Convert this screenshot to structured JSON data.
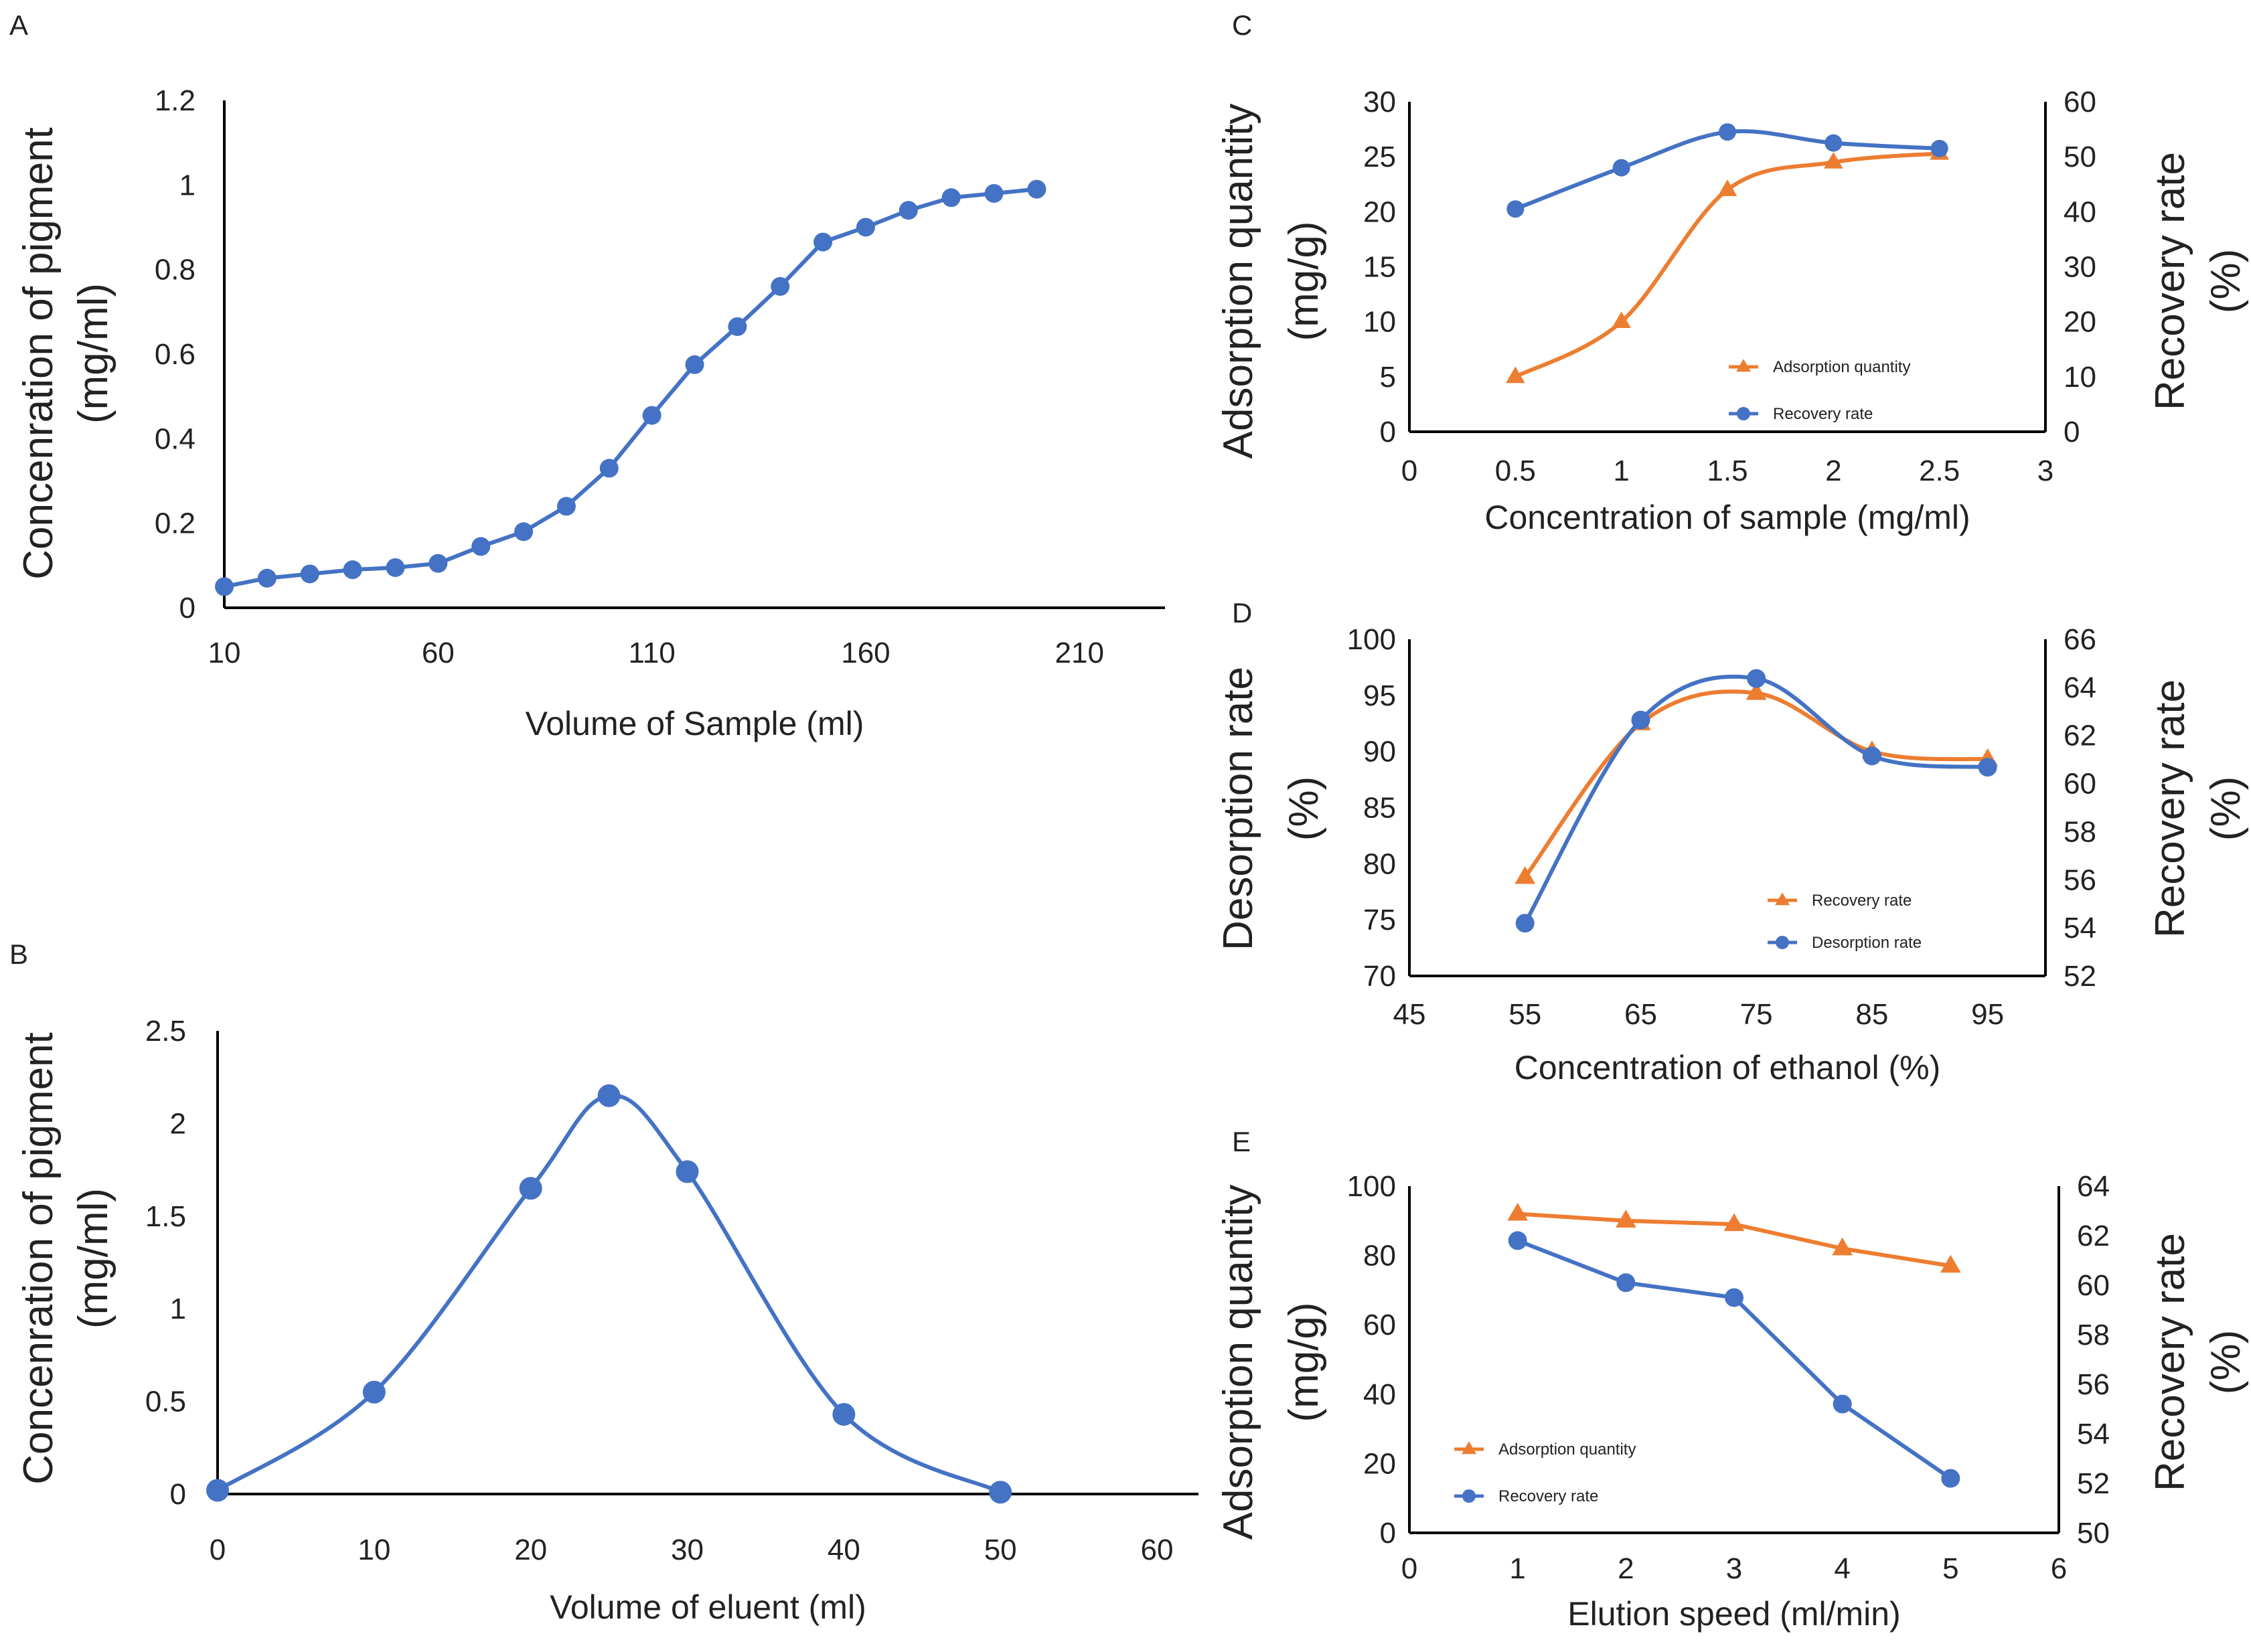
{
  "colors": {
    "blue": "#4472C4",
    "orange": "#ED7D31",
    "axis": "#000000",
    "text": "#222222"
  },
  "chart_data": [
    {
      "panel": "A",
      "type": "line",
      "xlabel": "Volume of Sample (ml)",
      "ylabel": [
        "Concenration of pigment",
        "(mg/ml)"
      ],
      "xlim": [
        10,
        230
      ],
      "ylim": [
        0,
        1.2
      ],
      "xticks": [
        10,
        60,
        110,
        160,
        210
      ],
      "yticks": [
        0,
        0.2,
        0.4,
        0.6,
        0.8,
        1,
        1.2
      ],
      "series": [
        {
          "name": "Concentration of pigment",
          "color": "#4472C4",
          "marker": "circle",
          "x": [
            10,
            20,
            30,
            40,
            50,
            60,
            70,
            80,
            90,
            100,
            110,
            120,
            130,
            140,
            150,
            160,
            170,
            180,
            190,
            200
          ],
          "y": [
            0.05,
            0.07,
            0.08,
            0.09,
            0.095,
            0.105,
            0.145,
            0.18,
            0.24,
            0.33,
            0.455,
            0.575,
            0.665,
            0.76,
            0.865,
            0.9,
            0.94,
            0.97,
            0.98,
            0.99
          ]
        }
      ]
    },
    {
      "panel": "B",
      "type": "line",
      "xlabel": "Volume of eluent (ml)",
      "ylabel": [
        "Concenration of pigment",
        "(mg/ml)"
      ],
      "xlim": [
        0,
        60
      ],
      "ylim": [
        0,
        2.5
      ],
      "xticks": [
        0,
        10,
        20,
        30,
        40,
        50,
        60
      ],
      "yticks": [
        0,
        0.5,
        1,
        1.5,
        2,
        2.5
      ],
      "series": [
        {
          "name": "Concentration of pigment",
          "color": "#4472C4",
          "marker": "circle",
          "x": [
            0,
            10,
            20,
            25,
            30,
            40,
            50
          ],
          "y": [
            0.02,
            0.55,
            1.65,
            2.15,
            1.74,
            0.43,
            0.01
          ]
        }
      ]
    },
    {
      "panel": "C",
      "type": "line",
      "xlabel": "Concentration of sample (mg/ml)",
      "ylabel": [
        "Adsorption quantity",
        "(mg/g)"
      ],
      "y2label": [
        "Recovery rate",
        "(%)"
      ],
      "xlim": [
        0,
        3
      ],
      "ylim": [
        0,
        30
      ],
      "y2lim": [
        0,
        60
      ],
      "xticks": [
        0,
        0.5,
        1,
        1.5,
        2,
        2.5,
        3
      ],
      "yticks": [
        0,
        5,
        10,
        15,
        20,
        25,
        30
      ],
      "y2ticks": [
        0,
        10,
        20,
        30,
        40,
        50,
        60
      ],
      "legend": [
        "Adsorption quantity",
        "Recovery rate"
      ],
      "series": [
        {
          "name": "Adsorption quantity",
          "color": "#ED7D31",
          "marker": "triangle",
          "axis": "left",
          "x": [
            0.5,
            1,
            1.5,
            2,
            2.5
          ],
          "y": [
            5,
            10,
            22,
            24.5,
            25.3
          ]
        },
        {
          "name": "Recovery rate",
          "color": "#4472C4",
          "marker": "circle",
          "axis": "right",
          "x": [
            0.5,
            1,
            1.5,
            2,
            2.5
          ],
          "y": [
            40.5,
            48,
            54.5,
            52.5,
            51.5
          ]
        }
      ]
    },
    {
      "panel": "D",
      "type": "line",
      "xlabel": "Concentration of ethanol (%)",
      "ylabel": [
        "Desorption rate",
        "(%)"
      ],
      "y2label": [
        "Recovery rate",
        "(%)"
      ],
      "xlim": [
        45,
        100
      ],
      "ylim": [
        70,
        100
      ],
      "y2lim": [
        52,
        66
      ],
      "xticks": [
        45,
        55,
        65,
        75,
        85,
        95
      ],
      "yticks": [
        70,
        75,
        80,
        85,
        90,
        95,
        100
      ],
      "y2ticks": [
        52,
        54,
        56,
        58,
        60,
        62,
        64,
        66
      ],
      "legend": [
        "Recovery rate",
        "Desorption rate"
      ],
      "series": [
        {
          "name": "Recovery rate",
          "color": "#ED7D31",
          "marker": "triangle",
          "axis": "left",
          "x": [
            55,
            65,
            75,
            85,
            95
          ],
          "y": [
            78.8,
            92.5,
            95.2,
            90,
            89.3
          ]
        },
        {
          "name": "Desorption rate",
          "color": "#4472C4",
          "marker": "circle",
          "axis": "left",
          "x": [
            55,
            65,
            75,
            85,
            95
          ],
          "y": [
            74.7,
            92.8,
            96.5,
            89.6,
            88.6
          ]
        }
      ]
    },
    {
      "panel": "E",
      "type": "line",
      "xlabel": "Elution speed (ml/min)",
      "ylabel": [
        "Adsorption quantity",
        "(mg/g)"
      ],
      "y2label": [
        "Recovery rate",
        "(%)"
      ],
      "xlim": [
        0,
        6
      ],
      "ylim": [
        0,
        100
      ],
      "y2lim": [
        50,
        64
      ],
      "xticks": [
        0,
        1,
        2,
        3,
        4,
        5,
        6
      ],
      "yticks": [
        0,
        20,
        40,
        60,
        80,
        100
      ],
      "y2ticks": [
        50,
        52,
        54,
        56,
        58,
        60,
        62,
        64
      ],
      "legend": [
        "Adsorption quantity",
        "Recovery rate"
      ],
      "series": [
        {
          "name": "Adsorption quantity",
          "color": "#ED7D31",
          "marker": "triangle",
          "axis": "left",
          "x": [
            1,
            2,
            3,
            4,
            5
          ],
          "y": [
            92,
            90,
            89,
            82,
            77
          ]
        },
        {
          "name": "Recovery rate",
          "color": "#4472C4",
          "marker": "circle",
          "axis": "right",
          "x": [
            1,
            2,
            3,
            4,
            5
          ],
          "y": [
            61.8,
            60.1,
            59.5,
            55.2,
            52.2
          ]
        }
      ]
    }
  ]
}
